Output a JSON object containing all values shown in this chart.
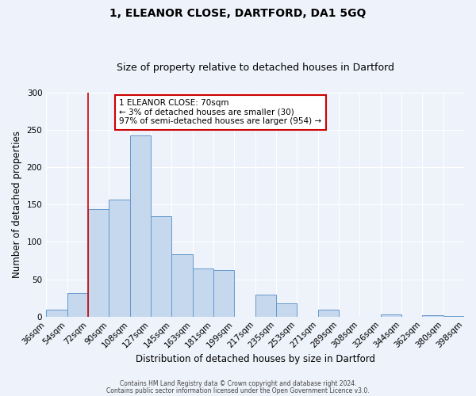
{
  "title": "1, ELEANOR CLOSE, DARTFORD, DA1 5GQ",
  "subtitle": "Size of property relative to detached houses in Dartford",
  "xlabel": "Distribution of detached houses by size in Dartford",
  "ylabel": "Number of detached properties",
  "footer_line1": "Contains HM Land Registry data © Crown copyright and database right 2024.",
  "footer_line2": "Contains public sector information licensed under the Open Government Licence v3.0.",
  "bin_edges_labels": [
    "36sqm",
    "54sqm",
    "72sqm",
    "90sqm",
    "108sqm",
    "127sqm",
    "145sqm",
    "163sqm",
    "181sqm",
    "199sqm",
    "217sqm",
    "235sqm",
    "253sqm",
    "271sqm",
    "289sqm",
    "308sqm",
    "326sqm",
    "344sqm",
    "362sqm",
    "380sqm",
    "398sqm"
  ],
  "bin_edges": [
    0,
    1,
    2,
    3,
    4,
    5,
    6,
    7,
    8,
    9,
    10,
    11,
    12,
    13,
    14,
    15,
    16,
    17,
    18,
    19,
    20
  ],
  "bin_values": [
    9,
    31,
    144,
    157,
    242,
    134,
    83,
    64,
    62,
    0,
    29,
    18,
    0,
    9,
    0,
    0,
    3,
    0,
    2,
    1
  ],
  "bar_color": "#c5d8ee",
  "bar_edge_color": "#6699cc",
  "vline_pos": 2,
  "vline_color": "#cc0000",
  "annotation_text_line1": "1 ELEANOR CLOSE: 70sqm",
  "annotation_text_line2": "← 3% of detached houses are smaller (30)",
  "annotation_text_line3": "97% of semi-detached houses are larger (954) →",
  "annotation_box_color": "#cc0000",
  "ylim": [
    0,
    300
  ],
  "yticks": [
    0,
    50,
    100,
    150,
    200,
    250,
    300
  ],
  "background_color": "#eef2fa",
  "plot_background": "#eef2fa",
  "title_fontsize": 10,
  "subtitle_fontsize": 9,
  "axis_label_fontsize": 8.5,
  "tick_fontsize": 7.5,
  "footer_fontsize": 5.5
}
